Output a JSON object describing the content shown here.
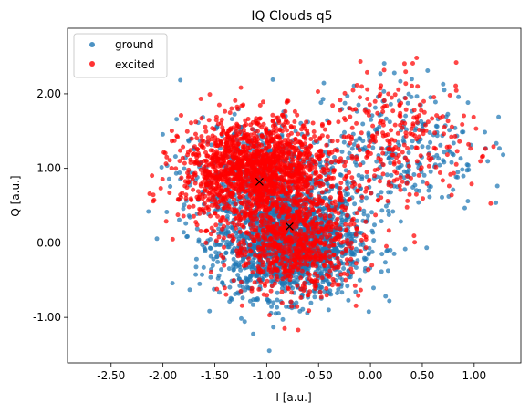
{
  "chart_data": {
    "type": "scatter",
    "title": "IQ Clouds q5",
    "xlabel": "I [a.u.]",
    "ylabel": "Q [a.u.]",
    "xlim": [
      -2.92,
      1.45
    ],
    "ylim": [
      -1.61,
      2.88
    ],
    "xticks": [
      -2.5,
      -2.0,
      -1.5,
      -1.0,
      -0.5,
      0.0,
      0.5,
      1.0
    ],
    "xtick_labels": [
      "-2.50",
      "-2.00",
      "-1.50",
      "-1.00",
      "-0.50",
      "0.00",
      "0.50",
      "1.00"
    ],
    "yticks": [
      -1.0,
      0.0,
      1.0,
      2.0
    ],
    "ytick_labels": [
      "-1.00",
      "0.00",
      "1.00",
      "2.00"
    ],
    "grid": false,
    "legend": {
      "placement": "top-left"
    },
    "series": [
      {
        "name": "ground",
        "color": "#1f77b4",
        "clusters": [
          {
            "center": [
              -0.78,
              0.0
            ],
            "spread": [
              0.34,
              0.36
            ],
            "weight": 0.7
          },
          {
            "center": [
              -1.08,
              0.9
            ],
            "spread": [
              0.38,
              0.36
            ],
            "weight": 0.2
          },
          {
            "center": [
              0.3,
              1.3
            ],
            "spread": [
              0.38,
              0.45
            ],
            "weight": 0.1
          }
        ],
        "center_marker": [
          -0.78,
          0.22
        ]
      },
      {
        "name": "excited",
        "color": "#ff0000",
        "clusters": [
          {
            "center": [
              -1.1,
              0.96
            ],
            "spread": [
              0.36,
              0.34
            ],
            "weight": 0.62
          },
          {
            "center": [
              -0.72,
              -0.02
            ],
            "spread": [
              0.32,
              0.34
            ],
            "weight": 0.28
          },
          {
            "center": [
              0.3,
              1.4
            ],
            "spread": [
              0.36,
              0.42
            ],
            "weight": 0.1
          }
        ],
        "center_marker": [
          -1.07,
          0.82
        ]
      }
    ]
  }
}
